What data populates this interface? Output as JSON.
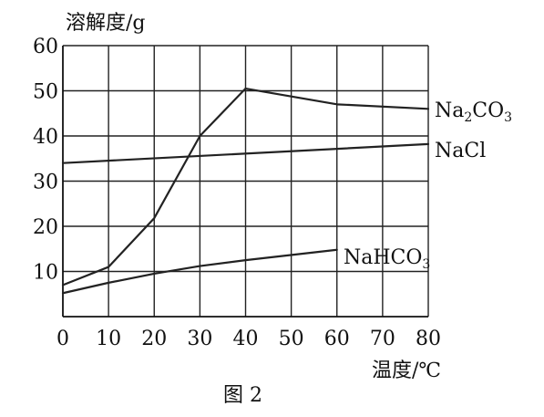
{
  "caption": "图 2",
  "chart_data": {
    "type": "line",
    "xlabel": "温度/℃",
    "ylabel": "溶解度/g",
    "xlim": [
      0,
      80
    ],
    "ylim": [
      0,
      60
    ],
    "x_ticks": [
      0,
      10,
      20,
      30,
      40,
      50,
      60,
      70,
      80
    ],
    "y_ticks": [
      10,
      20,
      30,
      40,
      50,
      60
    ],
    "grid": true,
    "series": [
      {
        "name": "Na2CO3",
        "label_main": "Na",
        "label_sub": "2",
        "label_tail": "CO",
        "label_sub2": "3",
        "x": [
          0,
          10,
          20,
          30,
          40,
          60,
          80
        ],
        "y": [
          7,
          11,
          21.8,
          40,
          50.5,
          47,
          46
        ]
      },
      {
        "name": "NaCl",
        "label_main": "NaCl",
        "label_sub": "",
        "label_tail": "",
        "label_sub2": "",
        "x": [
          0,
          80
        ],
        "y": [
          34,
          38.2
        ]
      },
      {
        "name": "NaHCO3",
        "label_main": "NaHCO",
        "label_sub": "",
        "label_tail": "",
        "label_sub2": "3",
        "x": [
          0,
          10,
          20,
          30,
          40,
          60
        ],
        "y": [
          5.2,
          7.5,
          9.5,
          11.2,
          12.5,
          14.8
        ]
      }
    ]
  }
}
